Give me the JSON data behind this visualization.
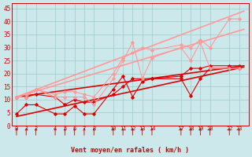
{
  "bg_color": "#cce8ea",
  "grid_color": "#99cccc",
  "xlabel": "Vent moyen/en rafales ( km/h )",
  "xlabel_color": "#cc0000",
  "tick_color": "#cc0000",
  "ylabel_ticks": [
    0,
    5,
    10,
    15,
    20,
    25,
    30,
    35,
    40,
    45
  ],
  "xlim": [
    -0.5,
    24
  ],
  "ylim": [
    0,
    47
  ],
  "xtick_positions": [
    0,
    1,
    2,
    4,
    5,
    6,
    7,
    8,
    10,
    11,
    12,
    13,
    14,
    17,
    18,
    19,
    20,
    22,
    23
  ],
  "series": [
    {
      "x": [
        0,
        1,
        2,
        4,
        5,
        6,
        7,
        8,
        10,
        11,
        12,
        13,
        14,
        17,
        18,
        19,
        20,
        22,
        23
      ],
      "y": [
        4.5,
        8,
        8,
        4.5,
        4.5,
        7.5,
        4.5,
        4.5,
        14,
        19,
        11,
        17,
        18,
        18,
        11.5,
        18,
        22,
        22,
        22
      ],
      "color": "#dd0000",
      "lw": 0.8,
      "marker": "D",
      "ms": 1.8
    },
    {
      "x": [
        0,
        1,
        2,
        4,
        5,
        6,
        7,
        8,
        10,
        11,
        12,
        13,
        14,
        17,
        18,
        19,
        20,
        22,
        23
      ],
      "y": [
        11,
        11,
        12,
        11,
        8,
        10,
        9,
        9,
        12,
        15,
        18,
        18,
        18,
        19,
        22,
        22,
        23,
        23,
        23
      ],
      "color": "#dd0000",
      "lw": 0.8,
      "marker": "D",
      "ms": 1.8
    },
    {
      "x": [
        0,
        23.5
      ],
      "y": [
        3.5,
        22.5
      ],
      "color": "#dd0000",
      "lw": 1.2,
      "marker": null,
      "ms": 0
    },
    {
      "x": [
        0,
        23.5
      ],
      "y": [
        11,
        23
      ],
      "color": "#dd0000",
      "lw": 1.2,
      "marker": null,
      "ms": 0
    },
    {
      "x": [
        0,
        1,
        2,
        4,
        5,
        6,
        7,
        8,
        10,
        11,
        12,
        13,
        14,
        17,
        18,
        19,
        20,
        22,
        23
      ],
      "y": [
        11,
        11,
        14,
        11,
        11,
        11,
        11,
        8,
        18,
        25,
        32,
        18,
        26,
        30,
        25,
        32,
        22,
        22,
        22
      ],
      "color": "#ff9999",
      "lw": 0.8,
      "marker": "D",
      "ms": 1.8
    },
    {
      "x": [
        0,
        1,
        2,
        4,
        5,
        6,
        7,
        8,
        10,
        11,
        12,
        13,
        14,
        17,
        18,
        19,
        20,
        22,
        23
      ],
      "y": [
        11,
        12,
        14,
        12,
        13,
        13,
        12,
        11,
        20,
        26,
        28,
        30,
        29,
        31,
        30,
        33,
        30,
        41,
        41
      ],
      "color": "#ff9999",
      "lw": 0.8,
      "marker": "D",
      "ms": 1.8
    },
    {
      "x": [
        0,
        23.5
      ],
      "y": [
        11,
        37
      ],
      "color": "#ff9999",
      "lw": 1.2,
      "marker": null,
      "ms": 0
    },
    {
      "x": [
        0,
        23.5
      ],
      "y": [
        11,
        44
      ],
      "color": "#ff9999",
      "lw": 1.2,
      "marker": null,
      "ms": 0
    }
  ],
  "arrows": [
    0,
    1,
    2,
    4,
    5,
    6,
    7,
    8,
    10,
    11,
    12,
    13,
    14,
    17,
    18,
    19,
    20,
    22,
    23
  ]
}
